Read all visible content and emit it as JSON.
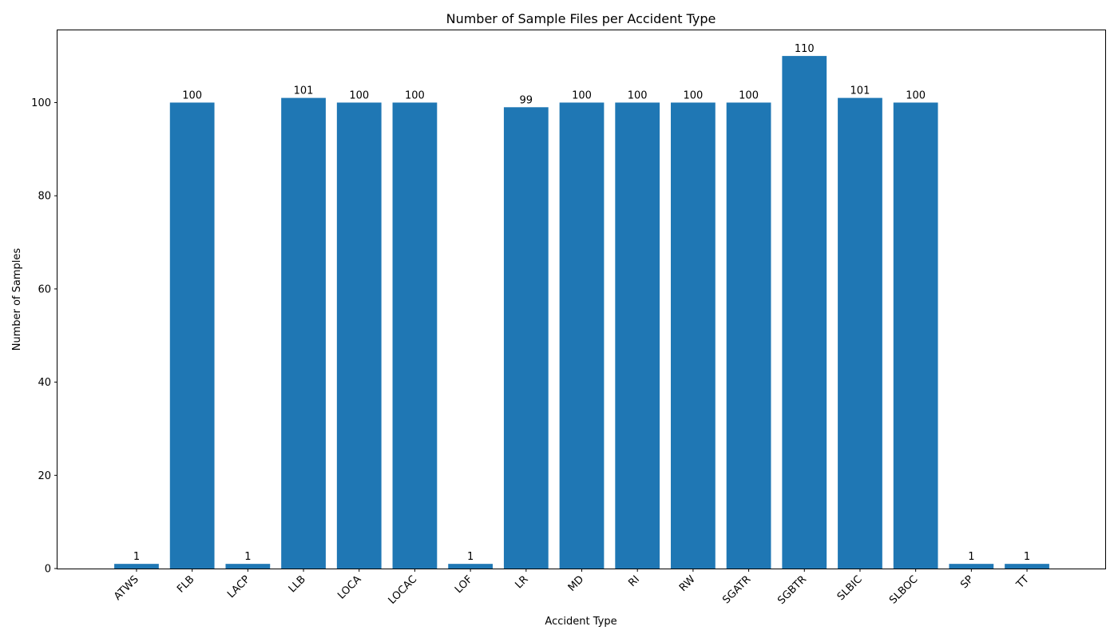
{
  "chart_data": {
    "type": "bar",
    "title": "Number of Sample Files per Accident Type",
    "xlabel": "Accident Type",
    "ylabel": "Number of Samples",
    "categories": [
      "ATWS",
      "FLB",
      "LACP",
      "LLB",
      "LOCA",
      "LOCAC",
      "LOF",
      "LR",
      "MD",
      "RI",
      "RW",
      "SGATR",
      "SGBTR",
      "SLBIC",
      "SLBOC",
      "SP",
      "TT"
    ],
    "values": [
      1,
      100,
      1,
      101,
      100,
      100,
      1,
      99,
      100,
      100,
      100,
      100,
      110,
      101,
      100,
      1,
      1
    ],
    "ylim": [
      0,
      115.5
    ],
    "yticks": [
      0,
      20,
      40,
      60,
      80,
      100
    ],
    "bar_color": "#1f77b4",
    "grid": false,
    "data_labels": true,
    "xtick_rotation": "45 degrees"
  }
}
